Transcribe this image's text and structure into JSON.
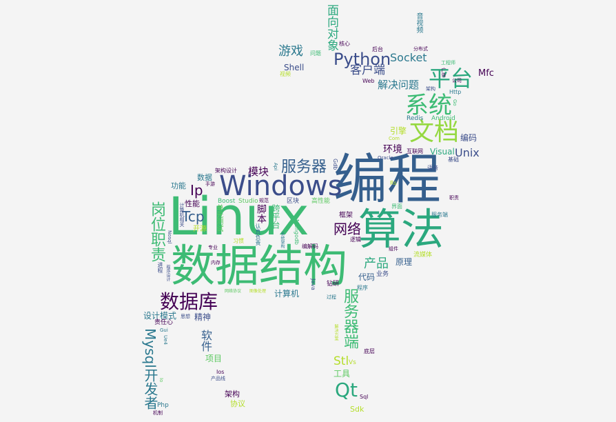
{
  "colors": {
    "background": "#f4f4f4",
    "palette": [
      "#440154",
      "#3b528b",
      "#21918c",
      "#5ec962",
      "#fde725"
    ]
  },
  "words": [
    {
      "text": "Linux",
      "color": "#3dbb74"
    },
    {
      "text": "编程",
      "color": "#355f8d"
    },
    {
      "text": "数据结构",
      "color": "#3dbb74"
    },
    {
      "text": "算法",
      "color": "#2ba87e"
    },
    {
      "text": "Windows",
      "color": "#3b4d8a"
    },
    {
      "text": "文档",
      "color": "#95d840"
    },
    {
      "text": "系统",
      "color": "#3dbb74"
    },
    {
      "text": "平台",
      "color": "#2ba87e"
    },
    {
      "text": "数据库",
      "color": "#440154"
    },
    {
      "text": "Python",
      "color": "#3b4d8a"
    },
    {
      "text": "岗位职责",
      "color": "#3dbb74"
    },
    {
      "text": "服务器端",
      "color": "#3dbb74"
    },
    {
      "text": "Mysql开发者",
      "color": "#2a788e"
    },
    {
      "text": "服务器",
      "color": "#355f8d"
    },
    {
      "text": "Qt",
      "color": "#2ba87e"
    },
    {
      "text": "网络",
      "color": "#440154"
    },
    {
      "text": "Tcp",
      "color": "#355f8d"
    },
    {
      "text": "Ip",
      "color": "#440154"
    },
    {
      "text": "游戏",
      "color": "#2a788e"
    },
    {
      "text": "客户端",
      "color": "#3b4d8a"
    },
    {
      "text": "Socket",
      "color": "#2a788e"
    },
    {
      "text": "面向对象",
      "color": "#2ba87e"
    },
    {
      "text": "产品",
      "color": "#2ba87e"
    },
    {
      "text": "软件",
      "color": "#355f8d"
    },
    {
      "text": "模块",
      "color": "#440154"
    },
    {
      "text": "Stl",
      "color": "#b5de2b"
    },
    {
      "text": "解决问题",
      "color": "#2a788e"
    },
    {
      "text": "环境",
      "color": "#440154"
    },
    {
      "text": "Unix",
      "color": "#3b4d8a"
    },
    {
      "text": "脚本",
      "color": "#440154"
    },
    {
      "text": "跨平台",
      "color": "#3dbb74"
    },
    {
      "text": "精神",
      "color": "#3b4d8a"
    },
    {
      "text": "Shell",
      "color": "#3b4d8a"
    },
    {
      "text": "Visual",
      "color": "#2ba87e"
    },
    {
      "text": "Mfc",
      "color": "#440154"
    },
    {
      "text": "设计模式",
      "color": "#2a788e"
    },
    {
      "text": "项目",
      "color": "#5ec962"
    },
    {
      "text": "计算机",
      "color": "#2a788e"
    },
    {
      "text": "代码",
      "color": "#355f8d"
    },
    {
      "text": "原理",
      "color": "#355f8d"
    },
    {
      "text": "性能",
      "color": "#440154"
    },
    {
      "text": "功能",
      "color": "#2a788e"
    },
    {
      "text": "数据",
      "color": "#2a788e"
    },
    {
      "text": "编码",
      "color": "#3b4d8a"
    },
    {
      "text": "引擎",
      "color": "#b5de2b"
    },
    {
      "text": "工具",
      "color": "#5ec962"
    },
    {
      "text": "架构",
      "color": "#440154"
    },
    {
      "text": "协议",
      "color": "#b5de2b"
    },
    {
      "text": "Sdk",
      "color": "#b5de2b"
    },
    {
      "text": "框架",
      "color": "#440154"
    },
    {
      "text": "单元测试",
      "color": "#5ec962"
    },
    {
      "text": "开源",
      "color": "#b5de2b"
    },
    {
      "text": "区块",
      "color": "#3b4d8a"
    },
    {
      "text": "高性能",
      "color": "#5ec962"
    },
    {
      "text": "流媒体",
      "color": "#b5de2b"
    },
    {
      "text": "钻研",
      "color": "#440154"
    },
    {
      "text": "Android",
      "color": "#3dbb74"
    },
    {
      "text": "Redis",
      "color": "#2a788e"
    },
    {
      "text": "Http",
      "color": "#2a788e"
    },
    {
      "text": "Web",
      "color": "#440154"
    },
    {
      "text": "后台",
      "color": "#440154"
    },
    {
      "text": "核心",
      "color": "#440154"
    },
    {
      "text": "问题",
      "color": "#3dbb74"
    },
    {
      "text": "视频",
      "color": "#b5de2b"
    },
    {
      "text": "音视频",
      "color": "#2a788e"
    },
    {
      "text": "分布式",
      "color": "#440154"
    },
    {
      "text": "工程师",
      "color": "#3dbb74"
    },
    {
      "text": "公司",
      "color": "#440154"
    },
    {
      "text": "广告",
      "color": "#440154"
    },
    {
      "text": "架构",
      "color": "#3b4d8a"
    },
    {
      "text": "Go",
      "color": "#3dbb74"
    },
    {
      "text": "Com",
      "color": "#b5de2b"
    },
    {
      "text": "互联网",
      "color": "#440154"
    },
    {
      "text": "Oracle",
      "color": "#3b4d8a"
    },
    {
      "text": "基础",
      "color": "#3b4d8a"
    },
    {
      "text": "语音",
      "color": "#3b4d8a"
    },
    {
      "text": "Rs",
      "color": "#b5de2b"
    },
    {
      "text": "界面",
      "color": "#3dbb74"
    },
    {
      "text": "职责",
      "color": "#440154"
    },
    {
      "text": "服务端",
      "color": "#2a788e"
    },
    {
      "text": "Gdb",
      "color": "#3b4d8a"
    },
    {
      "text": "Api",
      "color": "#2a788e"
    },
    {
      "text": "架构设计",
      "color": "#440154"
    },
    {
      "text": "手游",
      "color": "#440154"
    },
    {
      "text": "Boost",
      "color": "#3dbb74"
    },
    {
      "text": "Studio",
      "color": "#5ec962"
    },
    {
      "text": "规范",
      "color": "#440154"
    },
    {
      "text": "计算机相关",
      "color": "#3b4d8a"
    },
    {
      "text": "Nosql",
      "color": "#3b4d8a"
    },
    {
      "text": "认真负责",
      "color": "#2a788e"
    },
    {
      "text": "系统架构",
      "color": "#2a788e"
    },
    {
      "text": "Mongodb",
      "color": "#3dbb74"
    },
    {
      "text": "专业",
      "color": "#440154"
    },
    {
      "text": "习惯",
      "color": "#b5de2b"
    },
    {
      "text": "逻辑",
      "color": "#440154"
    },
    {
      "text": "编解码",
      "color": "#440154"
    },
    {
      "text": "组件",
      "color": "#440154"
    },
    {
      "text": "业务",
      "color": "#3b4d8a"
    },
    {
      "text": "内存",
      "color": "#440154"
    },
    {
      "text": "进程",
      "color": "#3b4d8a"
    },
    {
      "text": "程序设计",
      "color": "#3b4d8a"
    },
    {
      "text": "Java",
      "color": "#3b4d8a"
    },
    {
      "text": "程序",
      "color": "#2a788e"
    },
    {
      "text": "网络协议",
      "color": "#5ec962"
    },
    {
      "text": "图像处理",
      "color": "#b5de2b"
    },
    {
      "text": "过程",
      "color": "#2a788e"
    },
    {
      "text": "责任心",
      "color": "#440154"
    },
    {
      "text": "思想",
      "color": "#3b4d8a"
    },
    {
      "text": "Gui",
      "color": "#2a788e"
    },
    {
      "text": "Ue4",
      "color": "#2a788e"
    },
    {
      "text": "解决方案",
      "color": "#b5de2b"
    },
    {
      "text": "Vs",
      "color": "#b5de2b"
    },
    {
      "text": "底层",
      "color": "#440154"
    },
    {
      "text": "Ios",
      "color": "#440154"
    },
    {
      "text": "产品线",
      "color": "#3b4d8a"
    },
    {
      "text": "Io",
      "color": "#5ec962"
    },
    {
      "text": "Php",
      "color": "#2a788e"
    },
    {
      "text": "机制",
      "color": "#440154"
    },
    {
      "text": "Sql",
      "color": "#440154"
    }
  ]
}
